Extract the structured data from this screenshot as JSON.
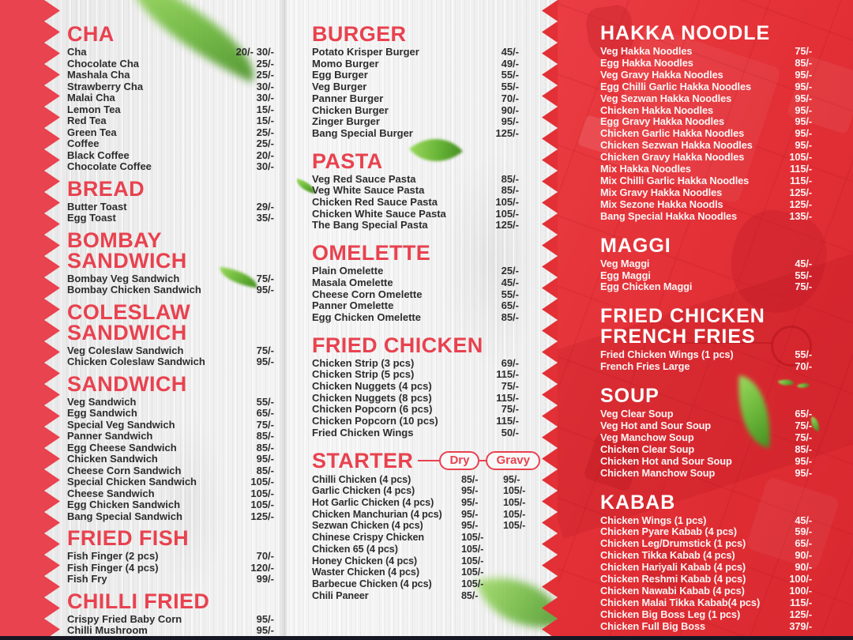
{
  "colors": {
    "accent_red": "#e8424f",
    "band_red": "#e8434e",
    "panel_red": "#e23036",
    "text_dark": "#2d2d2d",
    "text_light": "#ffffff",
    "leaf_green": "#76c043"
  },
  "menu": {
    "left_column": {
      "sections": [
        {
          "title": "CHA",
          "items": [
            {
              "name": "Cha",
              "price": "20/- 30/-"
            },
            {
              "name": "Chocolate Cha",
              "price": "25/-"
            },
            {
              "name": "Mashala Cha",
              "price": "25/-"
            },
            {
              "name": "Strawberry Cha",
              "price": "30/-"
            },
            {
              "name": "Malai Cha",
              "price": "30/-"
            },
            {
              "name": "Lemon Tea",
              "price": "15/-"
            },
            {
              "name": "Red Tea",
              "price": "15/-"
            },
            {
              "name": "Green Tea",
              "price": "25/-"
            },
            {
              "name": "Coffee",
              "price": "25/-"
            },
            {
              "name": "Black Coffee",
              "price": "20/-"
            },
            {
              "name": "Chocolate Coffee",
              "price": "30/-"
            }
          ]
        },
        {
          "title": "BREAD",
          "items": [
            {
              "name": "Butter Toast",
              "price": "29/-"
            },
            {
              "name": "Egg Toast",
              "price": "35/-"
            }
          ]
        },
        {
          "title": "BOMBAY\nSANDWICH",
          "items": [
            {
              "name": "Bombay Veg Sandwich",
              "price": "75/-"
            },
            {
              "name": "Bombay Chicken Sandwich",
              "price": "95/-"
            }
          ]
        },
        {
          "title": "COLESLAW\nSANDWICH",
          "items": [
            {
              "name": "Veg Coleslaw Sandwich",
              "price": "75/-"
            },
            {
              "name": "Chicken Coleslaw Sandwich",
              "price": "95/-"
            }
          ]
        },
        {
          "title": "SANDWICH",
          "items": [
            {
              "name": "Veg Sandwich",
              "price": "55/-"
            },
            {
              "name": "Egg Sandwich",
              "price": "65/-"
            },
            {
              "name": "Special Veg Sandwich",
              "price": "75/-"
            },
            {
              "name": "Panner Sandwich",
              "price": "85/-"
            },
            {
              "name": "Egg Cheese Sandwich",
              "price": "85/-"
            },
            {
              "name": "Chicken Sandwich",
              "price": "95/-"
            },
            {
              "name": "Cheese Corn Sandwich",
              "price": "85/-"
            },
            {
              "name": "Special Chicken Sandwich",
              "price": "105/-"
            },
            {
              "name": "Cheese Sandwich",
              "price": "105/-"
            },
            {
              "name": "Egg Chicken Sandwich",
              "price": "105/-"
            },
            {
              "name": "Bang Special Sandwich",
              "price": "125/-"
            }
          ]
        },
        {
          "title": "FRIED FISH",
          "items": [
            {
              "name": "Fish Finger (2 pcs)",
              "price": "70/-"
            },
            {
              "name": "Fish Finger (4 pcs)",
              "price": "120/-"
            },
            {
              "name": "Fish Fry",
              "price": "99/-"
            }
          ]
        },
        {
          "title": "CHILLI FRIED",
          "items": [
            {
              "name": "Crispy Fried Baby Corn",
              "price": "95/-"
            },
            {
              "name": "Chilli Mushroom",
              "price": "95/-"
            }
          ]
        }
      ]
    },
    "middle_column": {
      "sections": [
        {
          "title": "BURGER",
          "items": [
            {
              "name": "Potato Krisper Burger",
              "price": "45/-"
            },
            {
              "name": "Momo Burger",
              "price": "49/-"
            },
            {
              "name": "Egg Burger",
              "price": "55/-"
            },
            {
              "name": "Veg Burger",
              "price": "55/-"
            },
            {
              "name": "Panner Burger",
              "price": "70/-"
            },
            {
              "name": "Chicken Burger",
              "price": "90/-"
            },
            {
              "name": "Zinger Burger",
              "price": "95/-"
            },
            {
              "name": "Bang Special Burger",
              "price": "125/-"
            }
          ]
        },
        {
          "title": "PASTA",
          "items": [
            {
              "name": "Veg Red Sauce Pasta",
              "price": "85/-"
            },
            {
              "name": "Veg White Sauce Pasta",
              "price": "85/-"
            },
            {
              "name": "Chicken Red Sauce Pasta",
              "price": "105/-"
            },
            {
              "name": "Chicken White Sauce Pasta",
              "price": "105/-"
            },
            {
              "name": "The Bang Special Pasta",
              "price": "125/-"
            }
          ]
        },
        {
          "title": "OMELETTE",
          "items": [
            {
              "name": "Plain Omelette",
              "price": "25/-"
            },
            {
              "name": "Masala Omelette",
              "price": "45/-"
            },
            {
              "name": "Cheese Corn Omelette",
              "price": "55/-"
            },
            {
              "name": "Panner Omelette",
              "price": "65/-"
            },
            {
              "name": "Egg Chicken Omelette",
              "price": "85/-"
            }
          ]
        },
        {
          "title": "FRIED CHICKEN",
          "items": [
            {
              "name": "Chicken Strip (3 pcs)",
              "price": "69/-"
            },
            {
              "name": "Chicken Strip (5 pcs)",
              "price": "115/-"
            },
            {
              "name": "Chicken Nuggets (4 pcs)",
              "price": "75/-"
            },
            {
              "name": "Chicken Nuggets (8 pcs)",
              "price": "115/-"
            },
            {
              "name": "Chicken Popcorn (6 pcs)",
              "price": "75/-"
            },
            {
              "name": "Chicken Popcorn (10 pcs)",
              "price": "115/-"
            },
            {
              "name": "Fried Chicken Wings",
              "price": "50/-"
            }
          ]
        },
        {
          "title": "STARTER",
          "columns": [
            "Dry",
            "Gravy"
          ],
          "items": [
            {
              "name": "Chilli Chicken (4 pcs)",
              "prices": [
                "85/-",
                "95/-"
              ]
            },
            {
              "name": "Garlic Chicken (4 pcs)",
              "prices": [
                "95/-",
                "105/-"
              ]
            },
            {
              "name": "Hot Garlic Chicken (4 pcs)",
              "prices": [
                "95/-",
                "105/-"
              ]
            },
            {
              "name": "Chicken Manchurian (4 pcs)",
              "prices": [
                "95/-",
                "105/-"
              ]
            },
            {
              "name": "Sezwan Chicken (4 pcs)",
              "prices": [
                "95/-",
                "105/-"
              ]
            },
            {
              "name": "Chinese Crispy Chicken",
              "prices": [
                "105/-",
                ""
              ]
            },
            {
              "name": "Chicken 65 (4 pcs)",
              "prices": [
                "105/-",
                ""
              ]
            },
            {
              "name": "Honey Chicken (4 pcs)",
              "prices": [
                "105/-",
                ""
              ]
            },
            {
              "name": "Waster Chicken (4 pcs)",
              "prices": [
                "105/-",
                ""
              ]
            },
            {
              "name": "Barbecue Chicken (4 pcs)",
              "prices": [
                "105/-",
                ""
              ]
            },
            {
              "name": "Chili Paneer",
              "prices": [
                "85/-",
                ""
              ]
            }
          ]
        }
      ]
    },
    "right_column": {
      "sections": [
        {
          "title": "HAKKA NOODLE",
          "items": [
            {
              "name": "Veg Hakka Noodles",
              "price": "75/-"
            },
            {
              "name": "Egg Hakka Noodles",
              "price": "85/-"
            },
            {
              "name": "Veg Gravy Hakka Noodles",
              "price": "95/-"
            },
            {
              "name": "Egg Chilli Garlic Hakka Noodles",
              "price": "95/-"
            },
            {
              "name": "Veg Sezwan Hakka Noodles",
              "price": "95/-"
            },
            {
              "name": "Chicken Hakka Noodles",
              "price": "95/-"
            },
            {
              "name": "Egg Gravy Hakka Noodles",
              "price": "95/-"
            },
            {
              "name": "Chicken Garlic Hakka  Noodles",
              "price": "95/-"
            },
            {
              "name": "Chicken Sezwan Hakka Noodles",
              "price": "95/-"
            },
            {
              "name": "Chicken Gravy Hakka Noodles",
              "price": "105/-"
            },
            {
              "name": "Mix Hakka Noodles",
              "price": "115/-"
            },
            {
              "name": "Mix Chilli Garlic Hakka Noodles",
              "price": "115/-"
            },
            {
              "name": "Mix Gravy Hakka Noodles",
              "price": "125/-"
            },
            {
              "name": "Mix Sezone Hakka Noodls",
              "price": "125/-"
            },
            {
              "name": "Bang Special Hakka Noodles",
              "price": "135/-"
            }
          ]
        },
        {
          "title": "MAGGI",
          "items": [
            {
              "name": "Veg Maggi",
              "price": "45/-"
            },
            {
              "name": "Egg Maggi",
              "price": "55/-"
            },
            {
              "name": "Egg Chicken Maggi",
              "price": "75/-"
            }
          ]
        },
        {
          "title": "FRIED CHICKEN\nFRENCH FRIES",
          "items": [
            {
              "name": "Fried Chicken Wings (1 pcs)",
              "price": "55/-"
            },
            {
              "name": "French Fries Large",
              "price": "70/-"
            }
          ]
        },
        {
          "title": "SOUP",
          "items": [
            {
              "name": "Veg Clear Soup",
              "price": "65/-"
            },
            {
              "name": "Veg Hot and Sour Soup",
              "price": "75/-"
            },
            {
              "name": "Veg Manchow Soup",
              "price": "75/-"
            },
            {
              "name": "Chicken Clear Soup",
              "price": "85/-"
            },
            {
              "name": "Chicken Hot and Sour Soup",
              "price": "95/-"
            },
            {
              "name": "Chicken Manchow Soup",
              "price": "95/-"
            }
          ]
        },
        {
          "title": "KABAB",
          "items": [
            {
              "name": "Chicken Wings (1 pcs)",
              "price": "45/-"
            },
            {
              "name": "Chicken Pyare Kabab (4 pcs)",
              "price": "59/-"
            },
            {
              "name": "Chicken Leg/Drumstick (1 pcs)",
              "price": "65/-"
            },
            {
              "name": "Chicken Tikka Kabab (4 pcs)",
              "price": "90/-"
            },
            {
              "name": "Chicken Hariyali Kabab (4 pcs)",
              "price": "90/-"
            },
            {
              "name": "Chicken Reshmi Kabab (4 pcs)",
              "price": "100/-"
            },
            {
              "name": "Chicken Nawabi Kabab (4 pcs)",
              "price": "100/-"
            },
            {
              "name": "Chicken Malai Tikka Kabab(4 pcs)",
              "price": "115/-"
            },
            {
              "name": "Chicken Big Boss Leg (1 pcs)",
              "price": "125/-"
            },
            {
              "name": "Chicken Full Big Boss",
              "price": "379/-"
            }
          ]
        }
      ]
    }
  }
}
